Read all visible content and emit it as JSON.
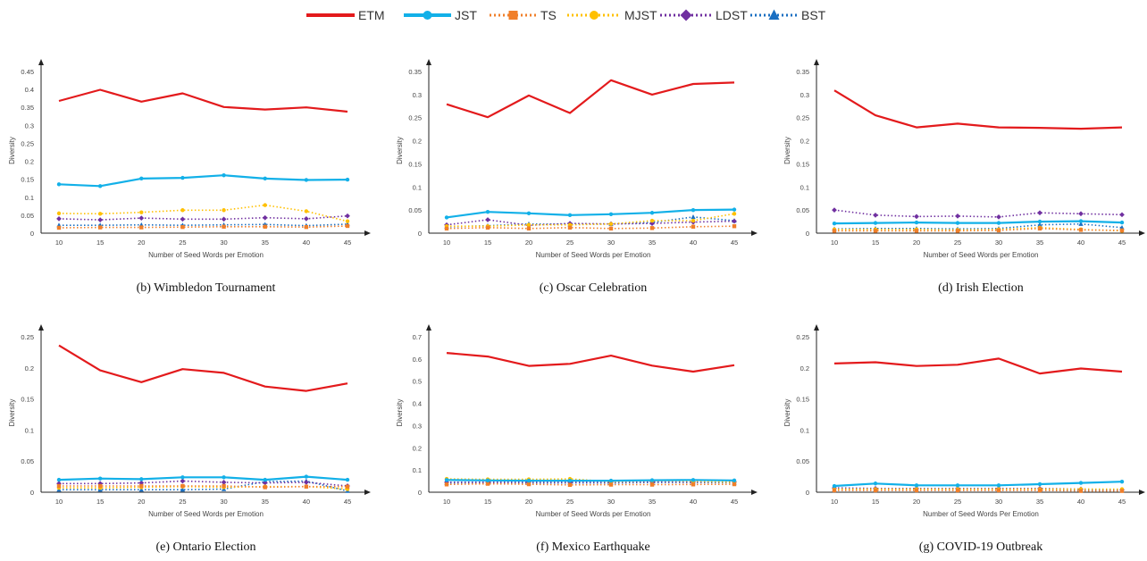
{
  "legend": {
    "items": [
      {
        "name": "ETM",
        "color": "#e31a1c",
        "style": "solid",
        "marker": "none"
      },
      {
        "name": "JST",
        "color": "#12b0e8",
        "style": "solid",
        "marker": "circle"
      },
      {
        "name": "TS",
        "color": "#f07f2a",
        "style": "dotted",
        "marker": "square"
      },
      {
        "name": "MJST",
        "color": "#ffc000",
        "style": "dotted",
        "marker": "circle"
      },
      {
        "name": "LDST",
        "color": "#7030a0",
        "style": "dotted",
        "marker": "diamond"
      },
      {
        "name": "BST",
        "color": "#1a6fc2",
        "style": "dotted",
        "marker": "triangle"
      }
    ]
  },
  "chart_data": [
    {
      "type": "line",
      "caption": "(b) Wimbledon Tournament",
      "xlabel": "Number of Seed Words per Emotion",
      "ylabel": "Diversity",
      "ylim": [
        0,
        0.45
      ],
      "yticks": [
        "0",
        "0.05",
        "0.1",
        "0.15",
        "0.2",
        "0.25",
        "0.3",
        "0.35",
        "0.4",
        "0.45"
      ],
      "categories": [
        "10",
        "15",
        "20",
        "25",
        "30",
        "35",
        "40",
        "45"
      ],
      "series": [
        {
          "name": "ETM",
          "values": [
            0.368,
            0.399,
            0.366,
            0.389,
            0.351,
            0.344,
            0.35,
            0.338
          ]
        },
        {
          "name": "JST",
          "values": [
            0.136,
            0.131,
            0.152,
            0.154,
            0.161,
            0.152,
            0.148,
            0.149
          ]
        },
        {
          "name": "TS",
          "values": [
            0.015,
            0.016,
            0.016,
            0.017,
            0.018,
            0.018,
            0.017,
            0.02
          ]
        },
        {
          "name": "MJST",
          "values": [
            0.055,
            0.054,
            0.058,
            0.064,
            0.064,
            0.078,
            0.061,
            0.033
          ]
        },
        {
          "name": "LDST",
          "values": [
            0.04,
            0.037,
            0.042,
            0.039,
            0.039,
            0.043,
            0.04,
            0.048
          ]
        },
        {
          "name": "BST",
          "values": [
            0.022,
            0.022,
            0.023,
            0.022,
            0.023,
            0.024,
            0.021,
            0.025
          ]
        }
      ]
    },
    {
      "type": "line",
      "caption": "(c) Oscar Celebration",
      "xlabel": "Number of Seed Words per Emotion",
      "ylabel": "Diversity",
      "ylim": [
        0,
        0.35
      ],
      "yticks": [
        "0",
        "0.05",
        "0.1",
        "0.15",
        "0.2",
        "0.25",
        "0.3",
        "0.35"
      ],
      "categories": [
        "10",
        "15",
        "20",
        "25",
        "30",
        "35",
        "40",
        "45"
      ],
      "series": [
        {
          "name": "ETM",
          "values": [
            0.279,
            0.251,
            0.298,
            0.26,
            0.331,
            0.3,
            0.323,
            0.326
          ]
        },
        {
          "name": "JST",
          "values": [
            0.034,
            0.046,
            0.043,
            0.039,
            0.041,
            0.044,
            0.05,
            0.051
          ]
        },
        {
          "name": "TS",
          "values": [
            0.01,
            0.012,
            0.01,
            0.012,
            0.01,
            0.011,
            0.014,
            0.015
          ]
        },
        {
          "name": "MJST",
          "values": [
            0.015,
            0.015,
            0.018,
            0.018,
            0.02,
            0.027,
            0.027,
            0.042
          ]
        },
        {
          "name": "LDST",
          "values": [
            0.018,
            0.029,
            0.017,
            0.021,
            0.02,
            0.021,
            0.024,
            0.026
          ]
        },
        {
          "name": "BST",
          "values": [
            0.014,
            0.016,
            0.02,
            0.019,
            0.02,
            0.023,
            0.035,
            0.027
          ]
        }
      ]
    },
    {
      "type": "line",
      "caption": "(d) Irish Election",
      "xlabel": "Number of Seed Words per Emotion",
      "ylabel": "Diversity",
      "ylim": [
        0,
        0.35
      ],
      "yticks": [
        "0",
        "0.05",
        "0.1",
        "0.15",
        "0.2",
        "0.25",
        "0.3",
        "0.35"
      ],
      "categories": [
        "10",
        "15",
        "20",
        "25",
        "30",
        "35",
        "40",
        "45"
      ],
      "series": [
        {
          "name": "ETM",
          "values": [
            0.309,
            0.255,
            0.229,
            0.237,
            0.229,
            0.228,
            0.226,
            0.229
          ]
        },
        {
          "name": "JST",
          "values": [
            0.021,
            0.022,
            0.023,
            0.022,
            0.022,
            0.025,
            0.026,
            0.023
          ]
        },
        {
          "name": "TS",
          "values": [
            0.005,
            0.005,
            0.005,
            0.005,
            0.006,
            0.01,
            0.007,
            0.006
          ]
        },
        {
          "name": "MJST",
          "values": [
            0.008,
            0.008,
            0.008,
            0.007,
            0.008,
            0.012,
            0.008,
            0.005
          ]
        },
        {
          "name": "LDST",
          "values": [
            0.05,
            0.039,
            0.036,
            0.037,
            0.035,
            0.044,
            0.042,
            0.04
          ]
        },
        {
          "name": "BST",
          "values": [
            0.009,
            0.01,
            0.01,
            0.009,
            0.01,
            0.018,
            0.02,
            0.012
          ]
        }
      ]
    },
    {
      "type": "line",
      "caption": "(e) Ontario Election",
      "xlabel": "Number of Seed Words per Emotion",
      "ylabel": "Diversity",
      "ylim": [
        0,
        0.25
      ],
      "yticks": [
        "0",
        "0.05",
        "0.1",
        "0.15",
        "0.2",
        "0.25"
      ],
      "categories": [
        "10",
        "15",
        "20",
        "25",
        "30",
        "35",
        "40",
        "45"
      ],
      "series": [
        {
          "name": "ETM",
          "values": [
            0.236,
            0.196,
            0.177,
            0.198,
            0.192,
            0.17,
            0.163,
            0.175
          ]
        },
        {
          "name": "JST",
          "values": [
            0.02,
            0.022,
            0.021,
            0.024,
            0.024,
            0.02,
            0.025,
            0.02
          ]
        },
        {
          "name": "TS",
          "values": [
            0.01,
            0.01,
            0.01,
            0.01,
            0.01,
            0.008,
            0.009,
            0.009
          ]
        },
        {
          "name": "MJST",
          "values": [
            0.007,
            0.007,
            0.008,
            0.009,
            0.008,
            0.009,
            0.009,
            0.005
          ]
        },
        {
          "name": "LDST",
          "values": [
            0.014,
            0.014,
            0.015,
            0.018,
            0.016,
            0.015,
            0.016,
            0.01
          ]
        },
        {
          "name": "BST",
          "values": [
            0.004,
            0.004,
            0.004,
            0.004,
            0.005,
            0.017,
            0.018,
            0.002
          ]
        }
      ]
    },
    {
      "type": "line",
      "caption": "(f) Mexico Earthquake",
      "xlabel": "Number of Seed Words per Emotion",
      "ylabel": "Diversity",
      "ylim": [
        0,
        0.7
      ],
      "yticks": [
        "0",
        "0.1",
        "0.2",
        "0.3",
        "0.4",
        "0.5",
        "0.6",
        "0.7"
      ],
      "categories": [
        "10",
        "15",
        "20",
        "25",
        "30",
        "35",
        "40",
        "45"
      ],
      "series": [
        {
          "name": "ETM",
          "values": [
            0.627,
            0.611,
            0.569,
            0.578,
            0.615,
            0.57,
            0.543,
            0.572
          ]
        },
        {
          "name": "JST",
          "values": [
            0.055,
            0.053,
            0.052,
            0.052,
            0.052,
            0.054,
            0.055,
            0.053
          ]
        },
        {
          "name": "TS",
          "values": [
            0.035,
            0.038,
            0.036,
            0.033,
            0.034,
            0.034,
            0.035,
            0.036
          ]
        },
        {
          "name": "MJST",
          "values": [
            0.06,
            0.058,
            0.058,
            0.06,
            0.048,
            0.052,
            0.05,
            0.045
          ]
        },
        {
          "name": "LDST",
          "values": [
            0.045,
            0.045,
            0.045,
            0.045,
            0.045,
            0.047,
            0.046,
            0.047
          ]
        },
        {
          "name": "BST",
          "values": [
            0.042,
            0.042,
            0.042,
            0.042,
            0.042,
            0.044,
            0.044,
            0.043
          ]
        }
      ]
    },
    {
      "type": "line",
      "caption": "(g) COVID-19 Outbreak",
      "xlabel": "Number of Seed Words Per Emotion",
      "ylabel": "Diversity",
      "ylim": [
        0,
        0.25
      ],
      "yticks": [
        "0",
        "0.05",
        "0.1",
        "0.15",
        "0.2",
        "0.25"
      ],
      "categories": [
        "10",
        "15",
        "20",
        "25",
        "30",
        "35",
        "40",
        "45"
      ],
      "series": [
        {
          "name": "ETM",
          "values": [
            0.207,
            0.209,
            0.203,
            0.205,
            0.215,
            0.191,
            0.199,
            0.194
          ]
        },
        {
          "name": "JST",
          "values": [
            0.01,
            0.014,
            0.011,
            0.011,
            0.011,
            0.013,
            0.015,
            0.017
          ]
        },
        {
          "name": "TS",
          "values": [
            0.003,
            0.003,
            0.003,
            0.003,
            0.003,
            0.003,
            0.002,
            0.002
          ]
        },
        {
          "name": "MJST",
          "values": [
            0.005,
            0.005,
            0.005,
            0.005,
            0.005,
            0.005,
            0.005,
            0.005
          ]
        },
        {
          "name": "LDST",
          "values": [
            0.007,
            0.006,
            0.006,
            0.006,
            0.006,
            0.006,
            0.005,
            0.004
          ]
        },
        {
          "name": "BST",
          "values": [
            0.004,
            0.004,
            0.004,
            0.004,
            0.004,
            0.004,
            0.003,
            0.003
          ]
        }
      ]
    }
  ]
}
